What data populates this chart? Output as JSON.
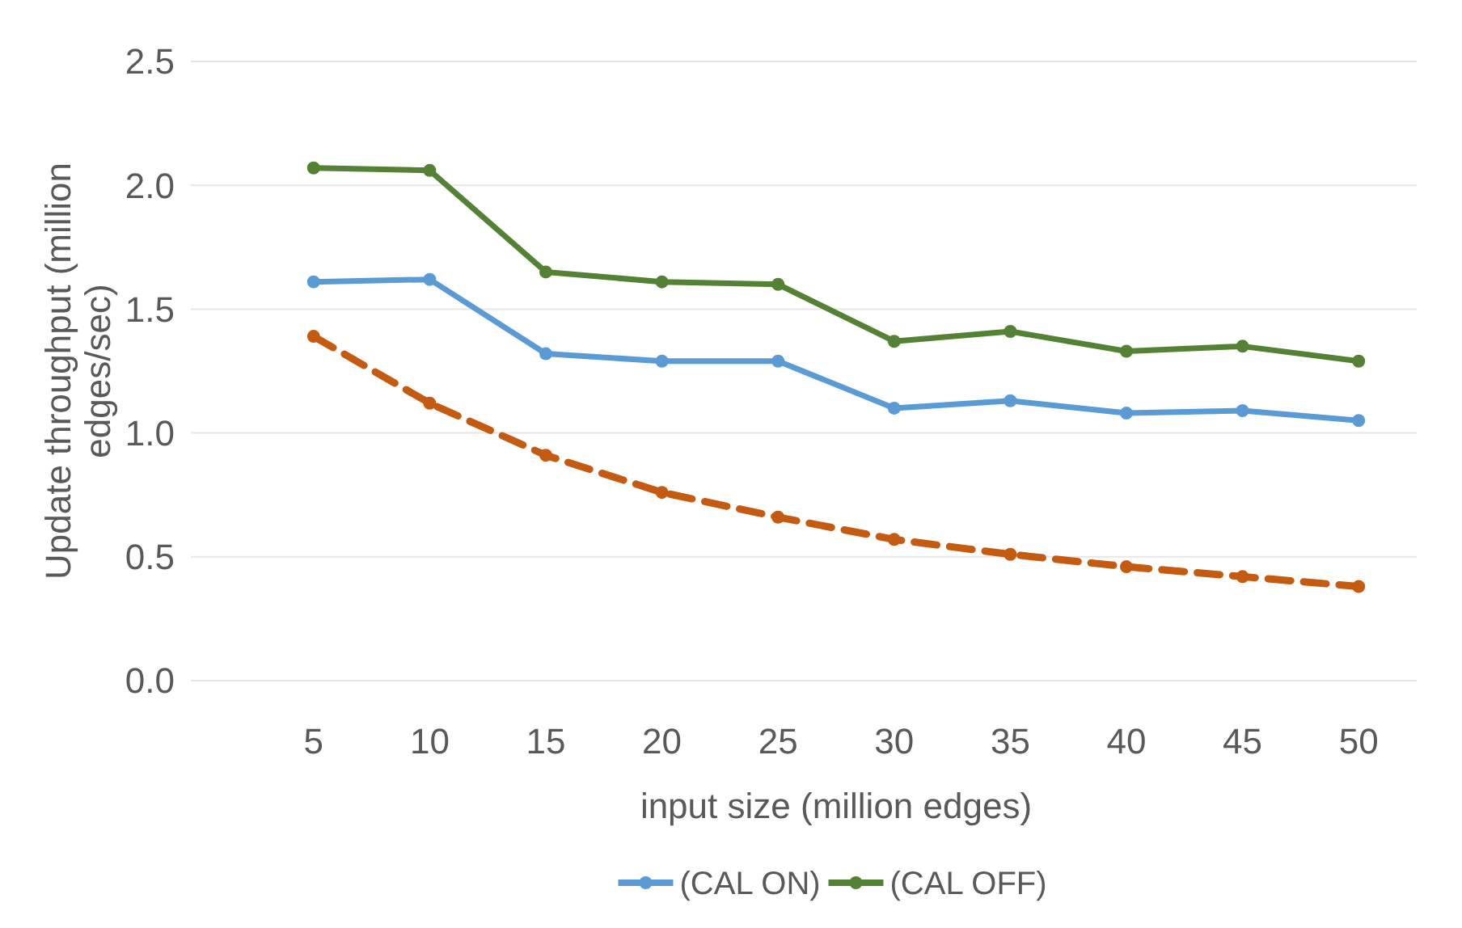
{
  "chart_data": {
    "type": "line",
    "xlabel": "input size (million edges)",
    "ylabel": "Update throughput (million edges/sec)",
    "categories": [
      "5",
      "10",
      "15",
      "20",
      "25",
      "30",
      "35",
      "40",
      "45",
      "50"
    ],
    "series": [
      {
        "name": "(CAL ON)",
        "color": "#5b9bd5",
        "values": [
          1.61,
          1.62,
          1.32,
          1.29,
          1.29,
          1.1,
          1.13,
          1.08,
          1.09,
          1.05
        ]
      },
      {
        "name": "(CAL OFF)",
        "color": "#548235",
        "values": [
          2.07,
          2.06,
          1.65,
          1.61,
          1.6,
          1.37,
          1.41,
          1.33,
          1.35,
          1.29
        ]
      },
      {
        "color": "#c55a11",
        "line_style": "dashed",
        "values": [
          1.39,
          1.12,
          0.91,
          0.76,
          0.66,
          0.57,
          0.51,
          0.46,
          0.42,
          0.38
        ]
      }
    ],
    "ylim": [
      0,
      2.5
    ],
    "yticks": [
      {
        "value": 0,
        "label": "0.0"
      },
      {
        "value": 0.5,
        "label": "0.5"
      },
      {
        "value": 1,
        "label": "1.0"
      },
      {
        "value": 1.5,
        "label": "1.5"
      },
      {
        "value": 2,
        "label": "2.0"
      },
      {
        "value": 2.5,
        "label": "2.5"
      }
    ],
    "grid": "y",
    "legend": "bottom",
    "marker": "circle",
    "line_style": "solid"
  }
}
